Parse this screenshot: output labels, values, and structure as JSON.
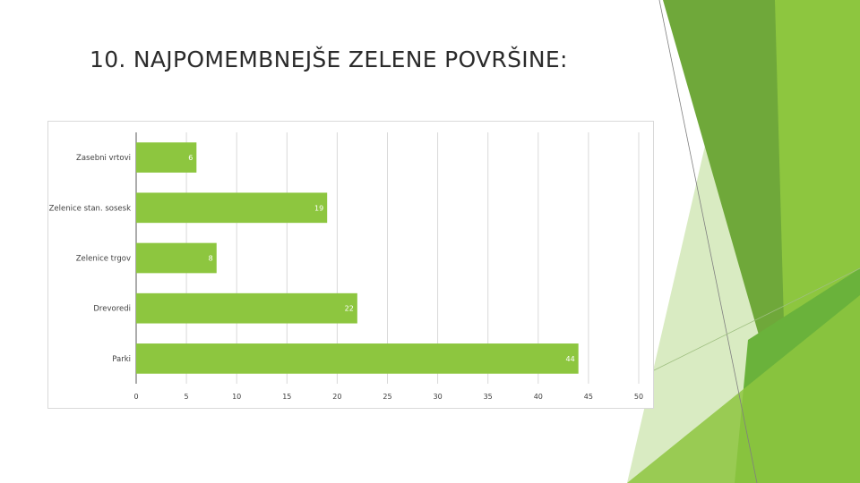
{
  "slide": {
    "title": "10. NAJPOMEMBNEJŠE ZELENE POVRŠINE:"
  },
  "colors": {
    "bar": "#8dc63f",
    "data_label": "#ffffff",
    "grid": "#d9d9d9",
    "text": "#404040",
    "accent_dark": "#4f8a25",
    "accent_mid": "#6fa83a",
    "accent_light": "#8dc63f",
    "accent_pale": "#d9ebc2"
  },
  "chart_data": {
    "type": "bar",
    "orientation": "horizontal",
    "title": "",
    "xlabel": "",
    "ylabel": "",
    "categories": [
      "Zasebni vrtovi",
      "Zelenice stan. sosesk",
      "Zelenice trgov",
      "Drevoredi",
      "Parki"
    ],
    "values": [
      6,
      19,
      8,
      22,
      44
    ],
    "data_labels": [
      "6",
      "19",
      "8",
      "22",
      "44"
    ],
    "xlim": [
      0,
      50
    ],
    "x_ticks": [
      0,
      5,
      10,
      15,
      20,
      25,
      30,
      35,
      40,
      45,
      50
    ],
    "x_tick_labels": [
      "0",
      "5",
      "10",
      "15",
      "20",
      "25",
      "30",
      "35",
      "40",
      "45",
      "50"
    ],
    "grid": true,
    "legend": "none"
  }
}
